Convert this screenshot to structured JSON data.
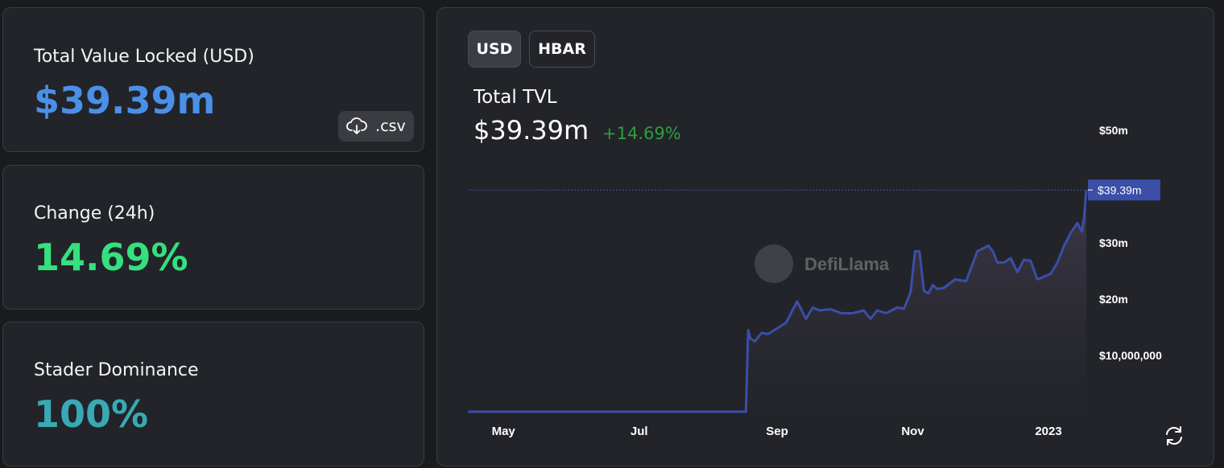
{
  "stats": {
    "tvl": {
      "title": "Total Value Locked (USD)",
      "value": "$39.39m",
      "color": "#4a90e8"
    },
    "change": {
      "title": "Change (24h)",
      "value": "14.69%",
      "color": "#35e07e"
    },
    "dominance": {
      "title": "Stader Dominance",
      "value": "100%",
      "color": "#39a9b4"
    },
    "csv_label": ".csv"
  },
  "chart_panel": {
    "toggles": [
      "USD",
      "HBAR"
    ],
    "selected": "USD",
    "title": "Total TVL",
    "value": "$39.39m",
    "change": "+14.69%",
    "watermark": "DefiLlama",
    "line_color": "#3b4ea8",
    "price_label": "$39.39m"
  },
  "chart_data": {
    "type": "area",
    "x_ticks": [
      "May",
      "Jul",
      "Sep",
      "Nov",
      "2023"
    ],
    "y_ticks": [
      {
        "value": 50000000,
        "label": "$50m"
      },
      {
        "value": 30000000,
        "label": "$30m"
      },
      {
        "value": 20000000,
        "label": "$20m"
      },
      {
        "value": 10000000,
        "label": "$10,000,000"
      }
    ],
    "ylim": [
      0,
      50000000
    ],
    "current": {
      "value": 39390000,
      "label": "$39.39m"
    },
    "x": [
      "2022-04-15",
      "2022-05-01",
      "2022-06-01",
      "2022-07-01",
      "2022-08-01",
      "2022-08-18",
      "2022-08-19",
      "2022-08-20",
      "2022-08-22",
      "2022-08-25",
      "2022-08-28",
      "2022-09-01",
      "2022-09-05",
      "2022-09-10",
      "2022-09-14",
      "2022-09-17",
      "2022-09-20",
      "2022-09-25",
      "2022-09-30",
      "2022-10-05",
      "2022-10-10",
      "2022-10-13",
      "2022-10-16",
      "2022-10-20",
      "2022-10-25",
      "2022-10-28",
      "2022-10-31",
      "2022-11-02",
      "2022-11-04",
      "2022-11-06",
      "2022-11-08",
      "2022-11-10",
      "2022-11-12",
      "2022-11-15",
      "2022-11-20",
      "2022-11-25",
      "2022-11-30",
      "2022-12-05",
      "2022-12-07",
      "2022-12-09",
      "2022-12-12",
      "2022-12-15",
      "2022-12-18",
      "2022-12-21",
      "2022-12-24",
      "2022-12-27",
      "2022-12-30",
      "2023-01-02",
      "2023-01-05",
      "2023-01-08",
      "2023-01-11",
      "2023-01-14",
      "2023-01-16",
      "2023-01-17",
      "2023-01-18"
    ],
    "values": [
      0,
      0,
      0,
      0,
      0,
      0,
      14500000,
      13000000,
      12500000,
      14000000,
      13800000,
      14800000,
      15800000,
      19600000,
      16500000,
      18500000,
      18000000,
      18200000,
      17500000,
      17500000,
      18000000,
      16500000,
      18000000,
      17500000,
      18500000,
      18300000,
      21200000,
      28500000,
      28500000,
      21500000,
      21000000,
      22500000,
      21800000,
      22000000,
      23500000,
      23200000,
      28500000,
      29500000,
      28500000,
      26500000,
      26500000,
      27300000,
      24800000,
      27000000,
      26800000,
      23500000,
      24000000,
      24500000,
      26500000,
      29500000,
      31800000,
      33500000,
      32000000,
      34500000,
      39390000
    ],
    "xlabel": "",
    "ylabel": "",
    "grid": false
  }
}
